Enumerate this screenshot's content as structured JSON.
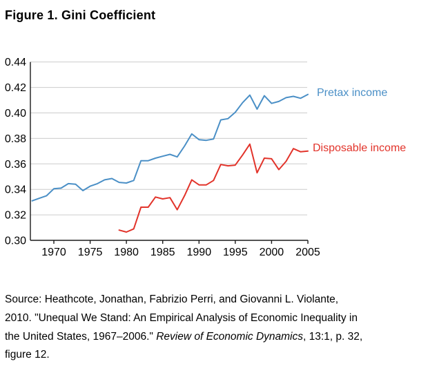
{
  "figure": {
    "title": "Figure 1. Gini Coefficient"
  },
  "chart_data": {
    "type": "line",
    "title": "Figure 1. Gini Coefficient",
    "xlabel": "",
    "ylabel": "",
    "xlim": [
      1966.8,
      2005.5
    ],
    "ylim": [
      0.3,
      0.44
    ],
    "xticks": [
      1970,
      1975,
      1980,
      1985,
      1990,
      1995,
      2000,
      2005
    ],
    "yticks": [
      0.3,
      0.32,
      0.34,
      0.36,
      0.38,
      0.4,
      0.42,
      0.44
    ],
    "grid": "horizontal",
    "grid_color": "#cccccc",
    "axis_color": "#1a1a1a",
    "legend_position": "outside-right",
    "series": [
      {
        "id": "pretax",
        "name": "Pretax income",
        "color": "#4a8fc6",
        "years": [
          1967,
          1968,
          1969,
          1970,
          1971,
          1972,
          1973,
          1974,
          1975,
          1976,
          1977,
          1978,
          1979,
          1980,
          1981,
          1982,
          1983,
          1984,
          1985,
          1986,
          1987,
          1988,
          1989,
          1990,
          1991,
          1992,
          1993,
          1994,
          1995,
          1996,
          1997,
          1998,
          1999,
          2000,
          2001,
          2002,
          2003,
          2004,
          2005
        ],
        "values": [
          0.331,
          0.333,
          0.335,
          0.3405,
          0.341,
          0.3445,
          0.344,
          0.339,
          0.3425,
          0.3445,
          0.3475,
          0.3485,
          0.3455,
          0.345,
          0.347,
          0.3625,
          0.3625,
          0.3645,
          0.366,
          0.3675,
          0.3655,
          0.374,
          0.3835,
          0.379,
          0.3785,
          0.3795,
          0.3945,
          0.3955,
          0.4005,
          0.408,
          0.414,
          0.403,
          0.4135,
          0.4075,
          0.409,
          0.412,
          0.413,
          0.4115,
          0.4145
        ]
      },
      {
        "id": "disposable",
        "name": "Disposable income",
        "color": "#e2332a",
        "years": [
          1979,
          1980,
          1981,
          1982,
          1983,
          1984,
          1985,
          1986,
          1987,
          1988,
          1989,
          1990,
          1991,
          1992,
          1993,
          1994,
          1995,
          1996,
          1997,
          1998,
          1999,
          2000,
          2001,
          2002,
          2003,
          2004,
          2005
        ],
        "values": [
          0.308,
          0.3065,
          0.309,
          0.326,
          0.326,
          0.334,
          0.3325,
          0.3335,
          0.324,
          0.335,
          0.3475,
          0.3435,
          0.3435,
          0.347,
          0.3595,
          0.3585,
          0.359,
          0.367,
          0.3755,
          0.353,
          0.3645,
          0.364,
          0.3555,
          0.362,
          0.372,
          0.3695,
          0.37
        ]
      }
    ]
  },
  "source_note": {
    "line1": "Source: Heathcote, Jonathan, Fabrizio Perri, and Giovanni L. Violante,",
    "line2": "2010. \"Unequal We Stand: An Empirical Analysis of Economic Inequality in",
    "line3_pre": "the United States, 1967–2006.\" ",
    "line3_italic": "Review of Economic Dynamics",
    "line3_post": ", 13:1, p. 32,",
    "line4": "figure 12."
  }
}
